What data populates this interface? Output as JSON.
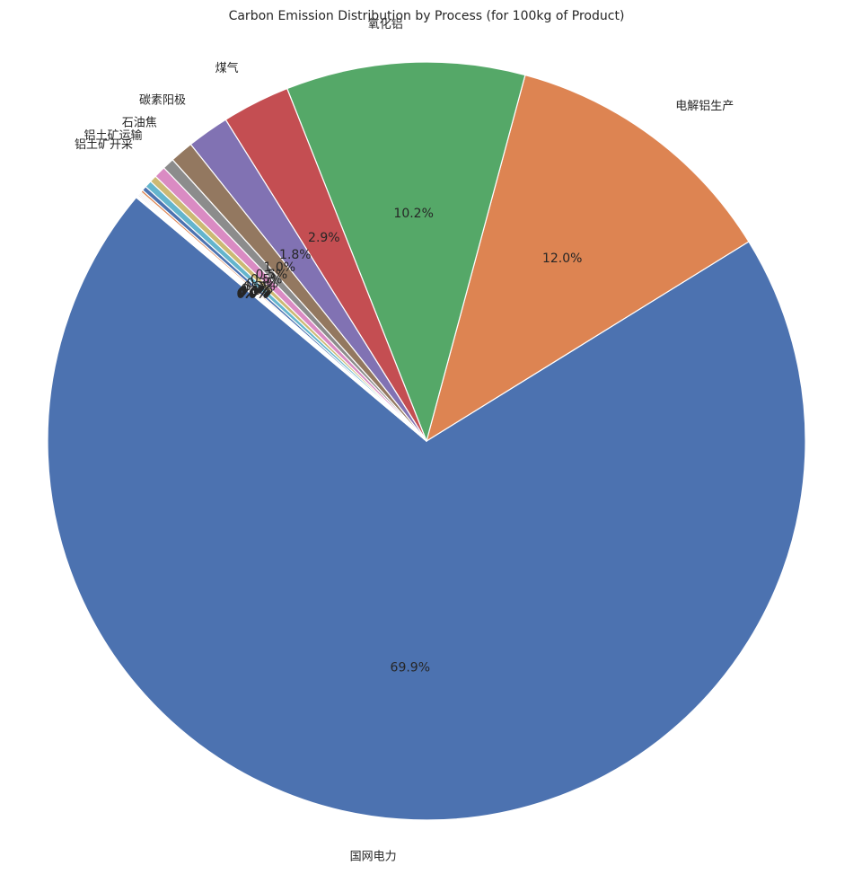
{
  "chart_data": {
    "type": "pie",
    "title": "Carbon Emission Distribution by Process (for 100kg of Product)",
    "start_angle_deg": 140,
    "direction": "counterclockwise",
    "autopct_format": "{:.1f}%",
    "slices": [
      {
        "label": "国网电力",
        "value": 70.0,
        "color": "#4c72b0"
      },
      {
        "label": "电解铝生产",
        "value": 12.0,
        "color": "#dd8452"
      },
      {
        "label": "氧化铝",
        "value": 10.2,
        "color": "#55a868"
      },
      {
        "label": "煤气",
        "value": 2.9,
        "color": "#c44e52"
      },
      {
        "label": "碳素阳极",
        "value": 1.8,
        "color": "#8172b3"
      },
      {
        "label": "石油焦",
        "value": 1.0,
        "color": "#937860"
      },
      {
        "label": "铝土矿运输",
        "value": 0.5,
        "color": "#8c8c8c"
      },
      {
        "label": "铝土矿开采",
        "value": 0.5,
        "color": "#da8bc3"
      },
      {
        "label": "",
        "value": 0.3,
        "color": "#ccb974"
      },
      {
        "label": "",
        "value": 0.3,
        "color": "#64b5cd"
      },
      {
        "label": "",
        "value": 0.2,
        "color": "#4c72b0"
      },
      {
        "label": "",
        "value": 0.1,
        "color": "#dd8452"
      },
      {
        "label": "",
        "value": 0.05,
        "color": "#55a868"
      },
      {
        "label": "",
        "value": 0.05,
        "color": "#c44e52"
      },
      {
        "label": "",
        "value": 0.05,
        "color": "#8172b3"
      },
      {
        "label": "",
        "value": 0.05,
        "color": "#937860"
      },
      {
        "label": "",
        "value": 0.04,
        "color": "#da8bc3"
      },
      {
        "label": "",
        "value": 0.03,
        "color": "#8c8c8c"
      },
      {
        "label": "",
        "value": 0.03,
        "color": "#ccb974"
      }
    ]
  }
}
